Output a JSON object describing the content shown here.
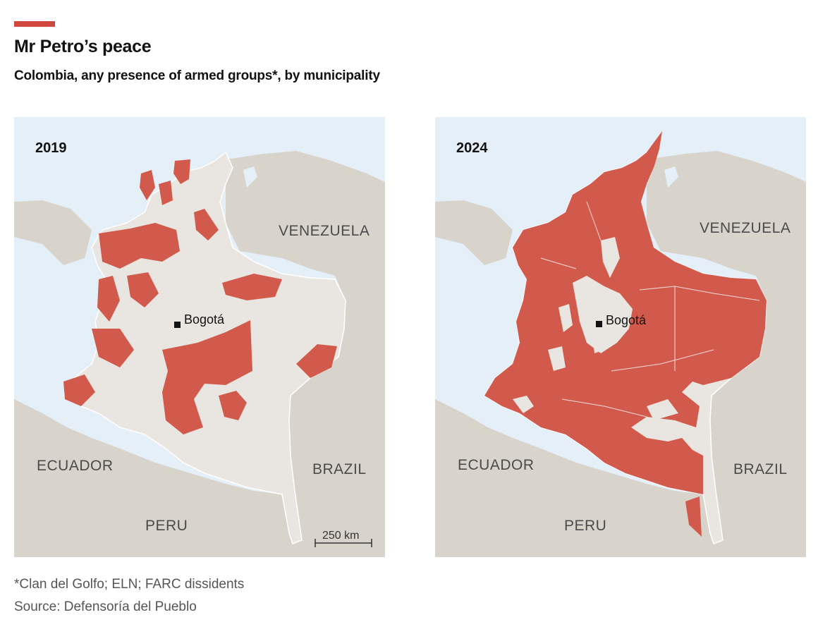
{
  "header": {
    "title": "Mr Petro’s peace",
    "subtitle": "Colombia, any presence of armed groups*, by municipality"
  },
  "colors": {
    "accent": "#d0483d",
    "armed_presence": "#d25a4c",
    "colombia_land": "#e9e6e1",
    "neighbour_land": "#d8d4cb",
    "sea": "#e4eff8"
  },
  "maps": [
    {
      "year": "2019",
      "labels": {
        "venezuela": "VENEZUELA",
        "ecuador": "ECUADOR",
        "peru": "PERU",
        "brazil": "BRAZIL",
        "capital": "Bogotá"
      },
      "scale_bar": "250 km"
    },
    {
      "year": "2024",
      "labels": {
        "venezuela": "VENEZUELA",
        "ecuador": "ECUADOR",
        "peru": "PERU",
        "brazil": "BRAZIL",
        "capital": "Bogotá"
      }
    }
  ],
  "footer": {
    "footnote": "*Clan del Golfo; ELN; FARC dissidents",
    "source": "Source: Defensoría del Pueblo"
  }
}
